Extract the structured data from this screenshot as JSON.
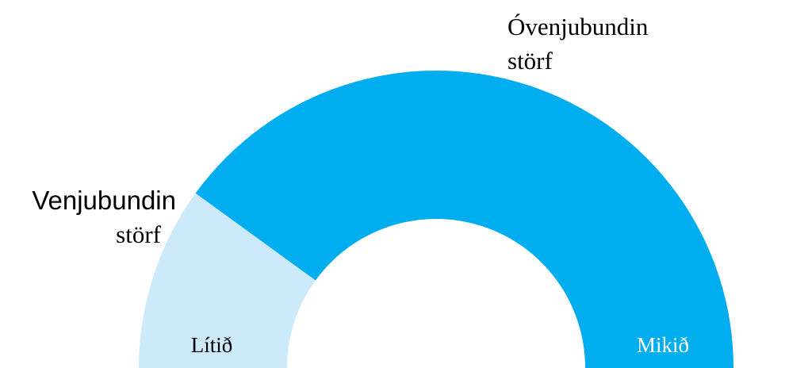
{
  "chart_data": {
    "type": "pie",
    "variant": "half-donut",
    "slices": [
      {
        "name_line1": "Venjubundin",
        "name_line2": "störf",
        "inner_label": "Lítið",
        "value": 20,
        "color": "#cdeafb",
        "inner_label_color": "#000000"
      },
      {
        "name_line1": "Óvenjubundin",
        "name_line2": "störf",
        "inner_label": "Mikið",
        "value": 80,
        "color": "#00adef",
        "inner_label_color": "#ffffff"
      }
    ]
  }
}
